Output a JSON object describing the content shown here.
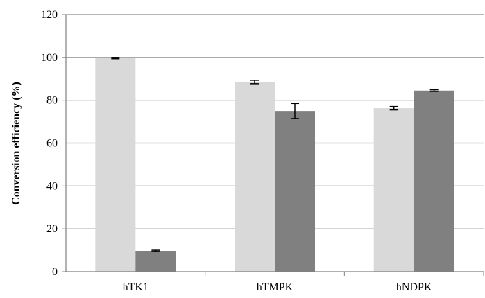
{
  "chart_data": {
    "type": "bar",
    "title": "",
    "xlabel": "",
    "ylabel": "Conversion efficiency (%)",
    "ylim": [
      0,
      120
    ],
    "yticks": [
      0,
      20,
      40,
      60,
      80,
      100,
      120
    ],
    "grid": true,
    "legend": "none",
    "categories": [
      "hTK1",
      "hTMPK",
      "hNDPK"
    ],
    "series": [
      {
        "color": "#d9d9d9",
        "values": [
          99.7,
          88.5,
          76.3
        ],
        "errors": [
          0.3,
          0.8,
          0.8
        ]
      },
      {
        "color": "#808080",
        "values": [
          9.7,
          75.0,
          84.5
        ],
        "errors": [
          0.3,
          3.5,
          0.4
        ]
      }
    ]
  }
}
